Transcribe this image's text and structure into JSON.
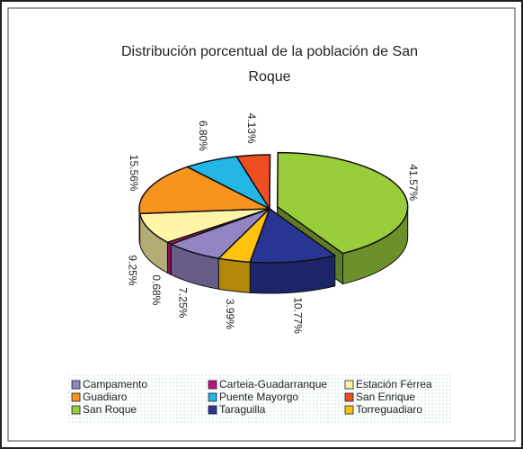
{
  "chart_data": {
    "type": "pie3d",
    "title": "Distribución porcentual de la población de San Roque",
    "categories": [
      "Campamento",
      "Carteia-Guadarranque",
      "Estación Férrea",
      "Guadiaro",
      "Puente Mayorgo",
      "San Enrique",
      "San Roque",
      "Taraguilla",
      "Torreguadiaro"
    ],
    "values": [
      7.25,
      0.68,
      9.25,
      15.56,
      6.8,
      4.13,
      41.57,
      10.77,
      3.99
    ],
    "value_labels": [
      "7.25%",
      "0.68%",
      "9.25%",
      "15.56%",
      "6.80%",
      "4.13%",
      "41.57%",
      "10.77%",
      "3.99%"
    ],
    "colors": [
      "#9484c4",
      "#c0127e",
      "#fff5a6",
      "#f7931e",
      "#23b5e3",
      "#ef4e23",
      "#9acd3c",
      "#283593",
      "#ffc20e"
    ],
    "legend": "bottom"
  }
}
